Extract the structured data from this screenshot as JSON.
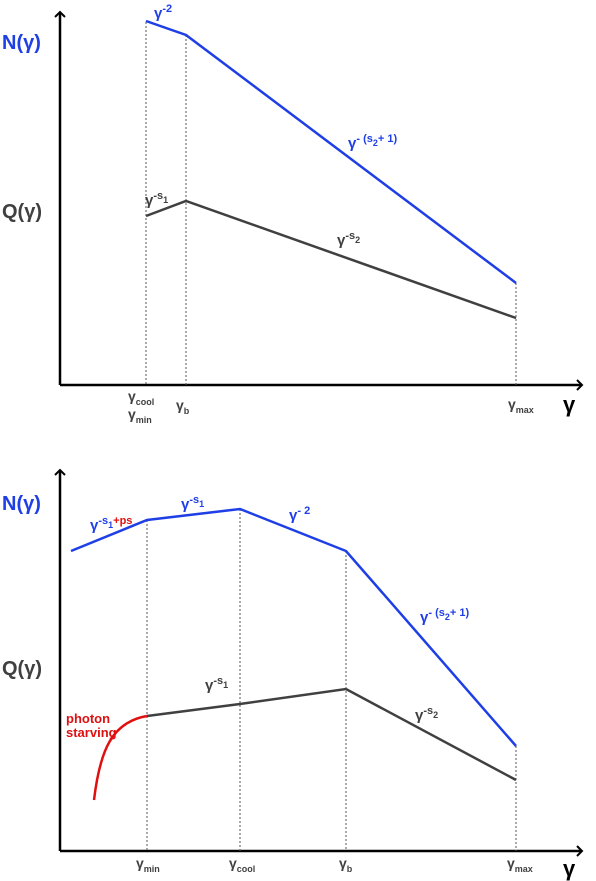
{
  "colors": {
    "blue": "#1f3fe6",
    "gray": "#404040",
    "red": "#e01010",
    "axis": "#000000"
  },
  "top_panel": {
    "y_axis_label_n": "N(γ)",
    "y_axis_label_q": "Q(γ)",
    "x_axis_symbol": "γ",
    "n_slope_1": "γ",
    "n_slope_1_exp": "-2",
    "n_slope_2": "γ",
    "n_slope_2_exp": "- (s",
    "n_slope_2_sub": "2",
    "n_slope_2_tail": "+ 1)",
    "q_slope_1": "γ",
    "q_slope_1_exp": "-s",
    "q_slope_1_sub": "1",
    "q_slope_2": "γ",
    "q_slope_2_exp": "-s",
    "q_slope_2_sub": "2",
    "tick_gamma_cool": "γ",
    "tick_gamma_cool_sub": "cool",
    "tick_gamma_min": "γ",
    "tick_gamma_min_sub": "min",
    "tick_gamma_b": "γ",
    "tick_gamma_b_sub": "b",
    "tick_gamma_max": "γ",
    "tick_gamma_max_sub": "max"
  },
  "bottom_panel": {
    "y_axis_label_n": "N(γ)",
    "y_axis_label_q": "Q(γ)",
    "x_axis_symbol": "γ",
    "n_slope_0": "γ",
    "n_slope_0_exp": "-s",
    "n_slope_0_sub": "1",
    "n_slope_0_tail": "+ps",
    "n_slope_1": "γ",
    "n_slope_1_exp": "-s",
    "n_slope_1_sub": "1",
    "n_slope_2": "γ",
    "n_slope_2_exp": "- 2",
    "n_slope_3": "γ",
    "n_slope_3_exp": "- (s",
    "n_slope_3_sub": "2",
    "n_slope_3_tail": "+ 1)",
    "q_slope_1": "γ",
    "q_slope_1_exp": "-s",
    "q_slope_1_sub": "1",
    "q_slope_2": "γ",
    "q_slope_2_exp": "-s",
    "q_slope_2_sub": "2",
    "photon_starving_line1": "photon",
    "photon_starving_line2": "starving",
    "tick_gamma_min": "γ",
    "tick_gamma_min_sub": "min",
    "tick_gamma_cool": "γ",
    "tick_gamma_cool_sub": "cool",
    "tick_gamma_b": "γ",
    "tick_gamma_b_sub": "b",
    "tick_gamma_max": "γ",
    "tick_gamma_max_sub": "max"
  }
}
